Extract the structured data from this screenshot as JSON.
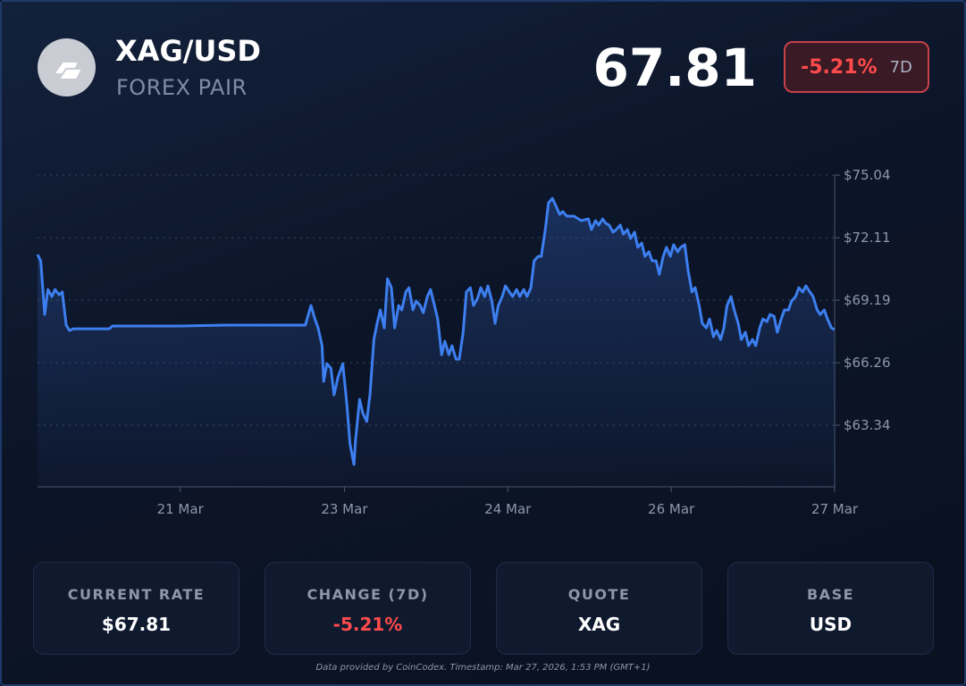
{
  "header": {
    "symbol": "XAG/USD",
    "subtitle": "FOREX PAIR",
    "price": "67.81",
    "change": "-5.21%",
    "period": "7D"
  },
  "chart_data": {
    "type": "area",
    "color": "#3d7ff0",
    "grid": true,
    "y_axis_side": "right",
    "xlim": [
      0,
      100
    ],
    "xticks": [
      {
        "value": 17.9,
        "label": "21 Mar"
      },
      {
        "value": 38.5,
        "label": "23 Mar"
      },
      {
        "value": 59.0,
        "label": "24 Mar"
      },
      {
        "value": 79.5,
        "label": "26 Mar"
      },
      {
        "value": 100,
        "label": "27 Mar"
      }
    ],
    "ylim": [
      60.46,
      75.04
    ],
    "yticks": [
      {
        "value": 75.04,
        "label": "$75.04"
      },
      {
        "value": 72.11,
        "label": "$72.11"
      },
      {
        "value": 69.19,
        "label": "$69.19"
      },
      {
        "value": 66.26,
        "label": "$66.26"
      },
      {
        "value": 63.34,
        "label": "$63.34"
      }
    ],
    "x": [
      0,
      0.4,
      0.9,
      1.3,
      1.8,
      2.2,
      2.7,
      3.1,
      3.6,
      4.0,
      4.5,
      9.0,
      9.4,
      17.9,
      23.5,
      29.1,
      33.6,
      34.3,
      34.8,
      35.2,
      35.7,
      35.9,
      36.3,
      36.8,
      37.2,
      37.7,
      38.1,
      38.3,
      38.8,
      39.2,
      39.7,
      39.9,
      40.4,
      40.8,
      41.3,
      41.7,
      42.2,
      42.6,
      43.0,
      43.5,
      43.9,
      44.4,
      44.8,
      45.3,
      45.7,
      46.2,
      46.6,
      47.1,
      47.5,
      48.0,
      48.4,
      48.9,
      49.3,
      49.8,
      50.2,
      50.7,
      51.1,
      51.6,
      52.0,
      52.5,
      52.9,
      53.4,
      53.8,
      54.3,
      54.7,
      55.2,
      55.6,
      56.1,
      56.5,
      57.0,
      57.4,
      57.8,
      58.3,
      58.7,
      59.2,
      59.6,
      60.1,
      60.5,
      61.0,
      61.4,
      61.9,
      62.3,
      62.8,
      63.2,
      63.7,
      64.1,
      64.6,
      65.0,
      65.5,
      65.9,
      66.4,
      67.3,
      68.2,
      69.1,
      69.5,
      70.0,
      70.4,
      70.9,
      71.3,
      71.7,
      72.2,
      72.6,
      73.1,
      73.5,
      74.0,
      74.4,
      74.9,
      75.3,
      75.8,
      76.2,
      76.7,
      77.1,
      77.6,
      78.0,
      78.5,
      78.9,
      79.4,
      79.8,
      80.3,
      80.7,
      81.2,
      81.6,
      82.1,
      82.5,
      83.0,
      83.4,
      83.9,
      84.3,
      84.8,
      85.2,
      85.7,
      86.1,
      86.5,
      87.0,
      87.4,
      87.9,
      88.3,
      88.8,
      89.2,
      89.7,
      90.1,
      90.6,
      91.0,
      91.5,
      91.9,
      92.4,
      92.8,
      93.3,
      93.7,
      94.2,
      94.6,
      95.1,
      95.5,
      96.0,
      96.4,
      96.9,
      97.3,
      97.8,
      98.2,
      98.7,
      99.1,
      99.6,
      100
    ],
    "values": [
      71.32,
      71.03,
      68.52,
      69.69,
      69.36,
      69.69,
      69.44,
      69.57,
      68.02,
      67.77,
      67.85,
      67.85,
      67.98,
      67.98,
      68.02,
      68.02,
      68.02,
      68.94,
      68.31,
      67.89,
      67.06,
      65.39,
      66.22,
      66.01,
      64.76,
      65.6,
      66.01,
      66.22,
      64.34,
      62.46,
      61.5,
      62.67,
      64.55,
      63.92,
      63.51,
      64.76,
      67.35,
      68.1,
      68.73,
      67.89,
      70.19,
      69.77,
      67.89,
      68.94,
      68.73,
      69.57,
      69.77,
      68.73,
      69.15,
      68.94,
      68.6,
      69.36,
      69.69,
      68.94,
      68.31,
      66.64,
      67.27,
      66.64,
      67.06,
      66.43,
      66.43,
      67.69,
      69.57,
      69.77,
      68.94,
      69.27,
      69.77,
      69.36,
      69.86,
      69.15,
      68.1,
      68.94,
      69.36,
      69.86,
      69.57,
      69.36,
      69.69,
      69.36,
      69.69,
      69.36,
      69.77,
      71.03,
      71.24,
      71.24,
      72.49,
      73.74,
      73.95,
      73.62,
      73.2,
      73.33,
      73.12,
      73.12,
      72.91,
      72.99,
      72.49,
      72.91,
      72.7,
      72.99,
      72.78,
      72.7,
      72.37,
      72.49,
      72.7,
      72.28,
      72.49,
      72.07,
      72.37,
      71.66,
      71.86,
      71.24,
      71.45,
      71.03,
      71.03,
      70.4,
      71.24,
      71.66,
      71.24,
      71.78,
      71.45,
      71.66,
      71.78,
      70.61,
      69.57,
      69.77,
      68.94,
      68.1,
      67.89,
      68.31,
      67.48,
      67.77,
      67.35,
      67.89,
      68.94,
      69.36,
      68.73,
      68.1,
      67.35,
      67.69,
      67.06,
      67.35,
      67.06,
      67.89,
      68.31,
      68.19,
      68.52,
      68.44,
      67.69,
      68.31,
      68.73,
      68.73,
      69.15,
      69.36,
      69.77,
      69.57,
      69.86,
      69.57,
      69.36,
      68.73,
      68.52,
      68.73,
      68.31,
      67.89,
      67.81
    ]
  },
  "stats": [
    {
      "label": "CURRENT RATE",
      "value": "$67.81"
    },
    {
      "label": "CHANGE (7D)",
      "value": "-5.21%"
    },
    {
      "label": "QUOTE",
      "value": "XAG"
    },
    {
      "label": "BASE",
      "value": "USD"
    }
  ],
  "footer": "Data provided by CoinCodex. Timestamp: Mar 27, 2026, 1:53 PM (GMT+1)"
}
